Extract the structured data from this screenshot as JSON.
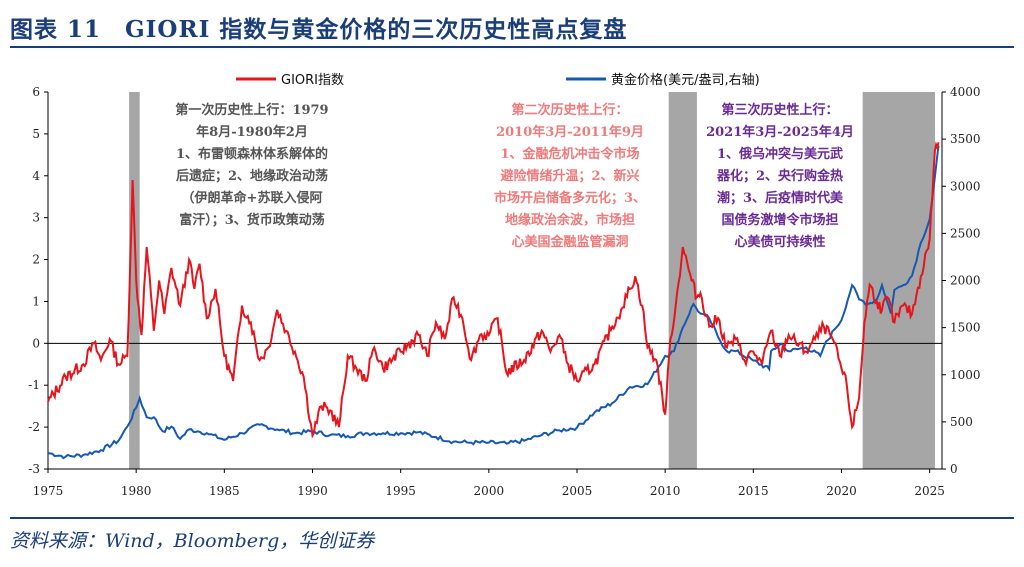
{
  "title": "图表 11　GIORI 指数与黄金价格的三次历史性高点复盘",
  "source": "资料来源：Wind，Bloomberg，华创证券",
  "colors": {
    "giori": "#e8141c",
    "gold": "#1659b4",
    "shade": "#a6a6a6",
    "brand": "#1a3e79"
  },
  "chart_data": {
    "type": "line",
    "legend_placement": "top",
    "x_ticks": [
      "1975",
      "1980",
      "1985",
      "1990",
      "1995",
      "2000",
      "2005",
      "2010",
      "2015",
      "2020",
      "2025"
    ],
    "xlim": [
      1975,
      2025.7
    ],
    "y_left": {
      "ylim": [
        -3,
        6
      ],
      "ticks": [
        "-3",
        "-2",
        "-1",
        "0",
        "1",
        "2",
        "3",
        "4",
        "5",
        "6"
      ]
    },
    "y_right": {
      "ylim": [
        0,
        4000
      ],
      "ticks": [
        "0",
        "500",
        "1000",
        "1500",
        "2000",
        "2500",
        "3000",
        "3500",
        "4000"
      ]
    },
    "shaded_periods": [
      {
        "start": 1979.6,
        "end": 1980.2
      },
      {
        "start": 2010.2,
        "end": 2011.8
      },
      {
        "start": 2021.2,
        "end": 2025.3
      }
    ],
    "annotations": [
      {
        "text": "第一次历史性上行：1979\n年8月-1980年2月\n1、布雷顿森林体系解体的\n后遗症；2、地缘政治动荡\n（伊朗革命+苏联入侵阿\n富汗）；3、货币政策动荡",
        "color": "#555555"
      },
      {
        "text": "第二次历史性上行：\n2010年3月-2011年9月\n1、金融危机冲击令市场\n避险情绪升温；2、新兴\n市场开启储备多元化；3、\n地缘政治余波，市场担\n心美国金融监管漏洞",
        "color": "#f07a7a"
      },
      {
        "text": "第三次历史性上行：\n2021年3月-2025年4月\n1、俄乌冲突与美元武\n器化；2、央行购金热\n潮；3、后疫情时代美\n国债务激增令市场担\n心美债可持续性",
        "color": "#6a2a96"
      }
    ],
    "series": [
      {
        "name": "GIORI指数",
        "axis": "left",
        "x": [
          1975,
          1976,
          1977,
          1977.6,
          1978,
          1978.5,
          1979,
          1979.5,
          1979.8,
          1980,
          1980.3,
          1980.6,
          1981,
          1981.3,
          1981.6,
          1982,
          1982.5,
          1983,
          1983.3,
          1983.6,
          1984,
          1984.5,
          1985,
          1985.5,
          1986,
          1986.5,
          1987,
          1987.5,
          1988,
          1988.5,
          1989,
          1989.5,
          1990,
          1990.5,
          1991,
          1991.5,
          1992,
          1992.5,
          1993,
          1993.5,
          1994,
          1995,
          1996,
          1996.5,
          1997,
          1997.5,
          1998,
          1998.5,
          1999,
          1999.5,
          2000,
          2000.5,
          2001,
          2002,
          2003,
          2003.5,
          2004,
          2004.5,
          2005,
          2006,
          2007,
          2007.5,
          2008,
          2008.3,
          2008.7,
          2009,
          2009.5,
          2010,
          2010.3,
          2010.6,
          2011,
          2011.5,
          2011.8,
          2012,
          2012.5,
          2013,
          2013.5,
          2014,
          2014.5,
          2015,
          2015.5,
          2016,
          2016.5,
          2017,
          2018,
          2018.5,
          2019,
          2019.5,
          2020,
          2020.3,
          2020.6,
          2021,
          2021.3,
          2021.6,
          2022,
          2022.3,
          2022.6,
          2023,
          2023.5,
          2024,
          2024.5,
          2025,
          2025.3,
          2025.5
        ],
        "values": [
          -1.4,
          -0.8,
          -0.5,
          0,
          -0.4,
          0.1,
          -0.5,
          -0.3,
          3.9,
          1.5,
          0.2,
          2.3,
          0.3,
          1.5,
          0.7,
          1.8,
          0.9,
          2.0,
          1.3,
          1.9,
          0.6,
          1.3,
          -0.3,
          -0.9,
          0.9,
          0.5,
          -0.4,
          -0.1,
          0.8,
          0.3,
          -0.2,
          -0.8,
          -2.2,
          -1.5,
          -1.6,
          -2.0,
          -0.3,
          -0.6,
          -0.9,
          -0.1,
          -0.6,
          -0.2,
          0.2,
          -0.3,
          0.5,
          0.1,
          1.1,
          0.6,
          -0.4,
          0.2,
          0.2,
          0.6,
          -0.7,
          -0.4,
          0.3,
          -0.2,
          0.2,
          -0.5,
          -0.9,
          -0.5,
          0.4,
          0.8,
          1.3,
          1.6,
          0.9,
          -0.1,
          -0.4,
          -1.7,
          0.1,
          0.9,
          2.3,
          1.5,
          1.1,
          1.2,
          0.4,
          0.6,
          -0.1,
          0.1,
          -0.4,
          -0.2,
          -0.5,
          0.3,
          -0.3,
          0.2,
          -0.2,
          0.1,
          0.4,
          0.1,
          -0.6,
          -1.0,
          -2.0,
          -1.3,
          0.5,
          1.4,
          1.0,
          0.8,
          1.1,
          0.5,
          0.9,
          0.7,
          1.6,
          2.5,
          4.6,
          4.8
        ]
      },
      {
        "name": "黄金价格(美元/盎司,右轴)",
        "axis": "right",
        "x": [
          1975,
          1976,
          1977,
          1978,
          1979,
          1979.5,
          1980,
          1980.2,
          1980.6,
          1981,
          1981.5,
          1982,
          1982.5,
          1983,
          1983.5,
          1984,
          1985,
          1986,
          1987,
          1988,
          1989,
          1990,
          1991,
          1992,
          1993,
          1994,
          1995,
          1996,
          1997,
          1998,
          1999,
          2000,
          2001,
          2002,
          2003,
          2004,
          2005,
          2006,
          2007,
          2008,
          2009,
          2010,
          2010.5,
          2011,
          2011.6,
          2012,
          2012.5,
          2013,
          2013.5,
          2014,
          2015,
          2015.9,
          2016,
          2016.6,
          2017,
          2018,
          2018.8,
          2019,
          2019.6,
          2020,
          2020.6,
          2021,
          2021.5,
          2022,
          2022.3,
          2022.8,
          2023,
          2023.5,
          2024,
          2024.5,
          2025,
          2025.3,
          2025.5
        ],
        "values": [
          170,
          130,
          150,
          200,
          300,
          450,
          650,
          750,
          550,
          550,
          400,
          450,
          320,
          420,
          400,
          380,
          310,
          380,
          470,
          420,
          380,
          400,
          360,
          350,
          380,
          380,
          380,
          390,
          340,
          290,
          280,
          280,
          270,
          300,
          360,
          410,
          440,
          600,
          700,
          870,
          900,
          1200,
          1250,
          1500,
          1750,
          1650,
          1600,
          1400,
          1250,
          1250,
          1150,
          1060,
          1250,
          1330,
          1250,
          1290,
          1200,
          1300,
          1480,
          1580,
          1950,
          1800,
          1750,
          1800,
          1950,
          1650,
          1900,
          1950,
          2050,
          2400,
          2650,
          3100,
          3430
        ]
      }
    ]
  }
}
